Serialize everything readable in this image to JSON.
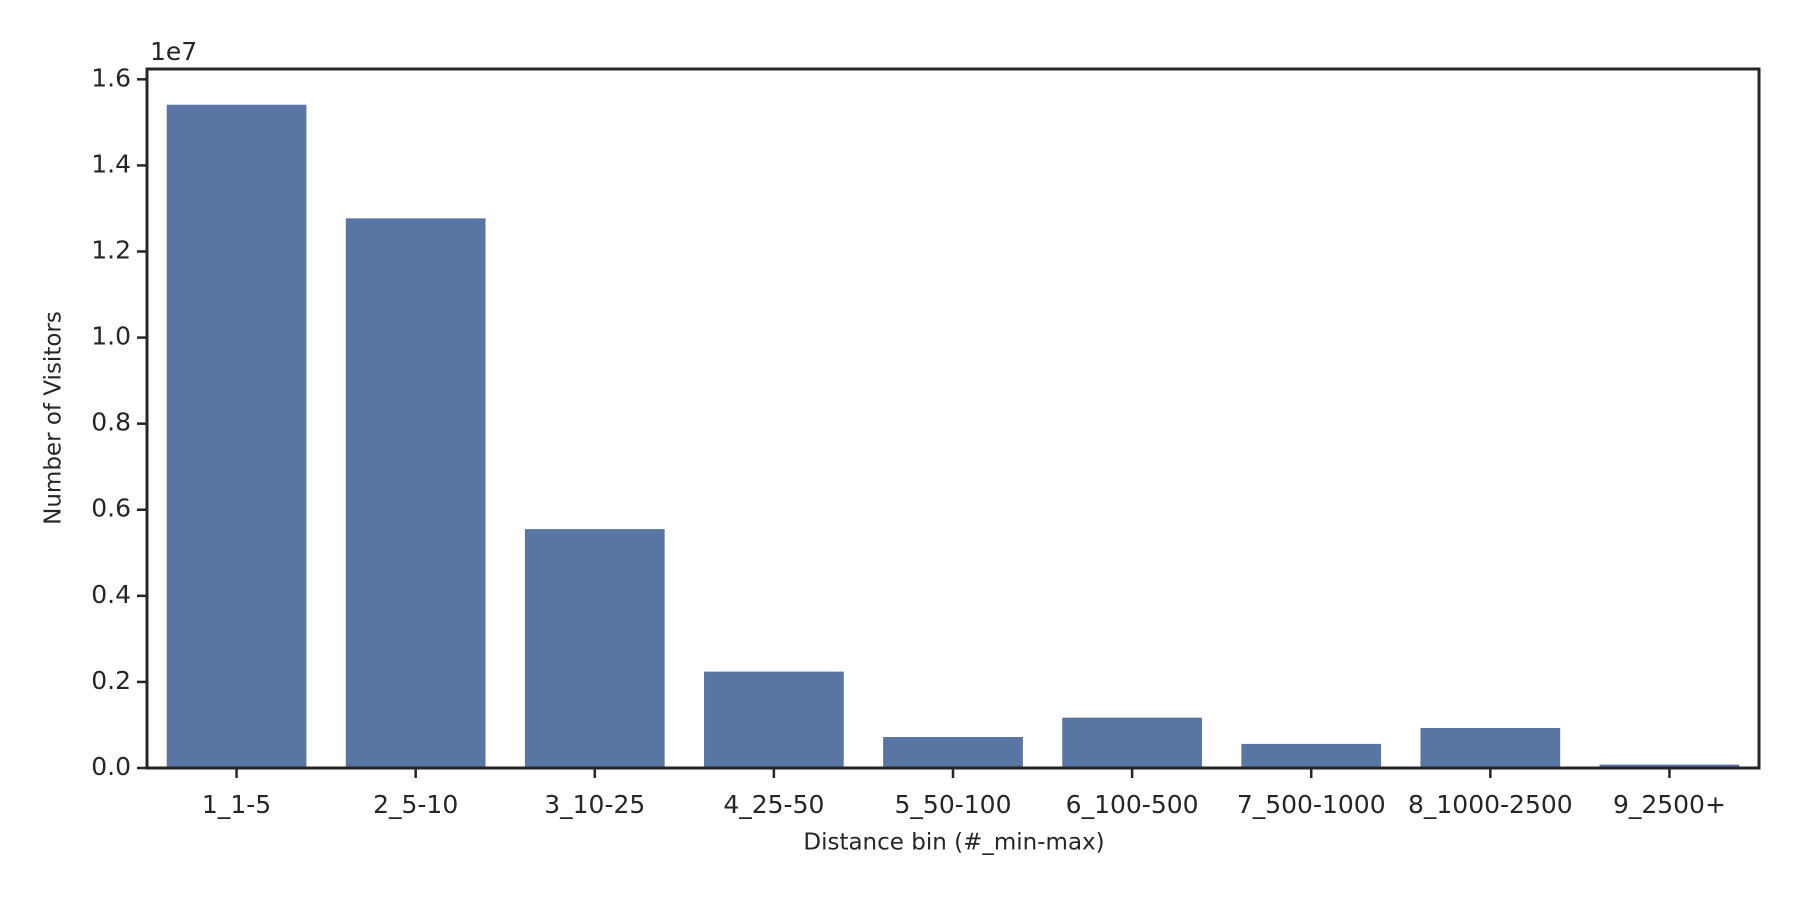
{
  "chart_data": {
    "type": "bar",
    "xlabel": "Distance bin (#_min-max)",
    "ylabel": "Number of Visitors",
    "y_offset_label": "1e7",
    "categories": [
      "1_1-5",
      "2_5-10",
      "3_10-25",
      "4_25-50",
      "5_50-100",
      "6_100-500",
      "7_500-1000",
      "8_1000-2500",
      "9_2500+"
    ],
    "values": [
      1.541,
      1.277,
      0.555,
      0.224,
      0.072,
      0.117,
      0.056,
      0.093,
      0.008
    ],
    "color": "#5975a4",
    "ylim": [
      0,
      1.624
    ],
    "yticks": [
      {
        "value": 0,
        "label": "0.0"
      },
      0.2,
      0.4,
      0.6,
      0.8,
      {
        "value": 1,
        "label": "1.0"
      },
      1.2,
      1.4,
      1.6
    ],
    "grid": false
  }
}
